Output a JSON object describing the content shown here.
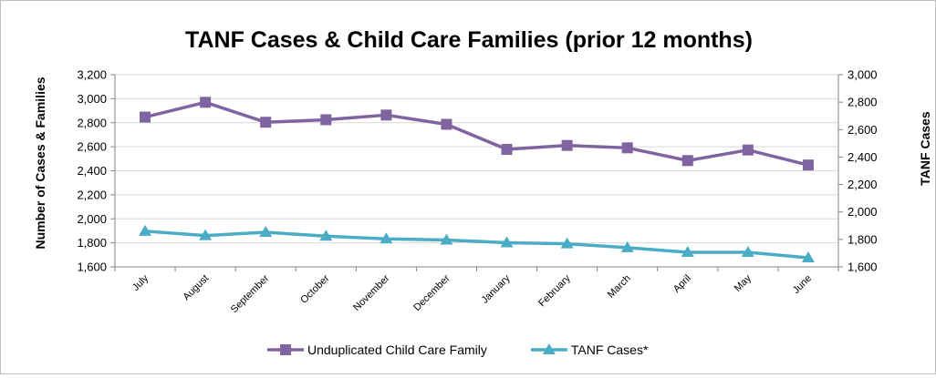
{
  "chart_data": {
    "type": "line",
    "title": "TANF Cases & Child Care Families (prior 12 months)",
    "ylabel": "Number of Cases & Families",
    "y2label": "TANF Cases",
    "xlabel": "",
    "categories": [
      "July",
      "August",
      "September",
      "October",
      "November",
      "December",
      "January",
      "February",
      "March",
      "April",
      "May",
      "June"
    ],
    "ylim": [
      1600,
      3200
    ],
    "y_ticks": [
      1600,
      1800,
      2000,
      2200,
      2400,
      2600,
      2800,
      3000,
      3200
    ],
    "y_tick_labels": [
      "1,600",
      "1,800",
      "2,000",
      "2,200",
      "2,400",
      "2,600",
      "2,800",
      "3,000",
      "3,200"
    ],
    "y2lim": [
      1600,
      3000
    ],
    "y2_ticks": [
      1600,
      1800,
      2000,
      2200,
      2400,
      2600,
      2800,
      3000
    ],
    "y2_tick_labels": [
      "1,600",
      "1,800",
      "2,000",
      "2,200",
      "2,400",
      "2,600",
      "2,800",
      "3,000"
    ],
    "grid": "horizontal major gridlines (left axis)",
    "legend_position": "bottom",
    "series": [
      {
        "name": "Unduplicated Child Care Family",
        "axis": "left",
        "marker": "square",
        "color": "#8064a2",
        "values": [
          2847,
          2970,
          2804,
          2825,
          2864,
          2787,
          2578,
          2611,
          2591,
          2485,
          2573,
          2448
        ]
      },
      {
        "name": "TANF  Cases*",
        "axis": "right",
        "marker": "triangle",
        "color": "#4bacc6",
        "values": [
          1860,
          1828,
          1852,
          1824,
          1804,
          1796,
          1776,
          1768,
          1740,
          1706,
          1706,
          1666
        ]
      }
    ]
  }
}
